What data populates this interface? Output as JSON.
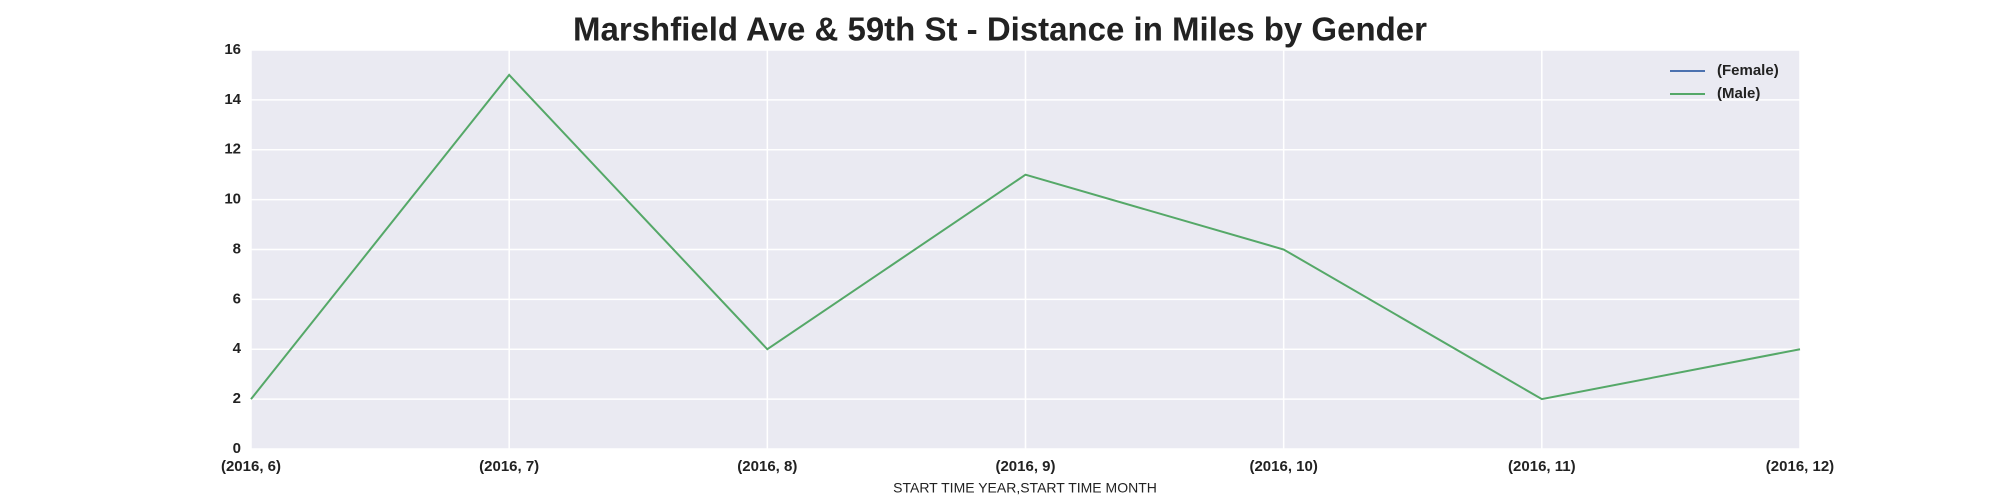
{
  "chart_data": {
    "type": "line",
    "title": "Marshfield Ave & 59th St - Distance in Miles by Gender",
    "x_label": "START TIME YEAR,START TIME MONTH",
    "categories": [
      "(2016, 6)",
      "(2016, 7)",
      "(2016, 8)",
      "(2016, 9)",
      "(2016, 10)",
      "(2016, 11)",
      "(2016, 12)"
    ],
    "series": [
      {
        "name": "(Female)",
        "color": "#4c72b0",
        "values": [
          null,
          null,
          null,
          null,
          null,
          null,
          null
        ]
      },
      {
        "name": "(Male)",
        "color": "#55a868",
        "values": [
          2,
          15,
          4,
          11,
          8,
          2,
          4
        ]
      }
    ],
    "ylim": [
      0,
      16
    ],
    "yticks": [
      0,
      2,
      4,
      6,
      8,
      10,
      12,
      14,
      16
    ],
    "grid": true,
    "legend": "upper right"
  }
}
